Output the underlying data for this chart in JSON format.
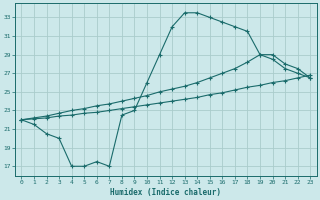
{
  "xlabel": "Humidex (Indice chaleur)",
  "bg_color": "#cce8ea",
  "grid_color": "#aacccc",
  "line_color": "#1a6b6b",
  "xlim": [
    -0.5,
    23.5
  ],
  "ylim": [
    16.0,
    34.5
  ],
  "xticks": [
    0,
    1,
    2,
    3,
    4,
    5,
    6,
    7,
    8,
    9,
    10,
    11,
    12,
    13,
    14,
    15,
    16,
    17,
    18,
    19,
    20,
    21,
    22,
    23
  ],
  "yticks": [
    17,
    19,
    21,
    23,
    25,
    27,
    29,
    31,
    33
  ],
  "line1_x": [
    0,
    1,
    2,
    3,
    4,
    5,
    6,
    7,
    8,
    9,
    10,
    11,
    12,
    13,
    14,
    15,
    16,
    17,
    18,
    19,
    20,
    21,
    22,
    23
  ],
  "line1_y": [
    22.0,
    21.5,
    20.5,
    20.0,
    17.0,
    17.0,
    17.5,
    17.0,
    22.5,
    23.0,
    26.0,
    29.0,
    32.0,
    33.5,
    33.5,
    33.0,
    32.5,
    32.0,
    31.5,
    29.0,
    28.5,
    27.5,
    27.0,
    26.5
  ],
  "line2_x": [
    0,
    1,
    2,
    3,
    4,
    5,
    6,
    7,
    8,
    9,
    10,
    11,
    12,
    13,
    14,
    15,
    16,
    17,
    18,
    19,
    20,
    21,
    22,
    23
  ],
  "line2_y": [
    22.0,
    22.2,
    22.4,
    22.7,
    23.0,
    23.2,
    23.5,
    23.7,
    24.0,
    24.3,
    24.6,
    25.0,
    25.3,
    25.6,
    26.0,
    26.5,
    27.0,
    27.5,
    28.2,
    29.0,
    29.0,
    28.0,
    27.5,
    26.5
  ],
  "line3_x": [
    0,
    1,
    2,
    3,
    4,
    5,
    6,
    7,
    8,
    9,
    10,
    11,
    12,
    13,
    14,
    15,
    16,
    17,
    18,
    19,
    20,
    21,
    22,
    23
  ],
  "line3_y": [
    22.0,
    22.1,
    22.2,
    22.4,
    22.5,
    22.7,
    22.8,
    23.0,
    23.2,
    23.4,
    23.6,
    23.8,
    24.0,
    24.2,
    24.4,
    24.7,
    24.9,
    25.2,
    25.5,
    25.7,
    26.0,
    26.2,
    26.5,
    26.8
  ]
}
